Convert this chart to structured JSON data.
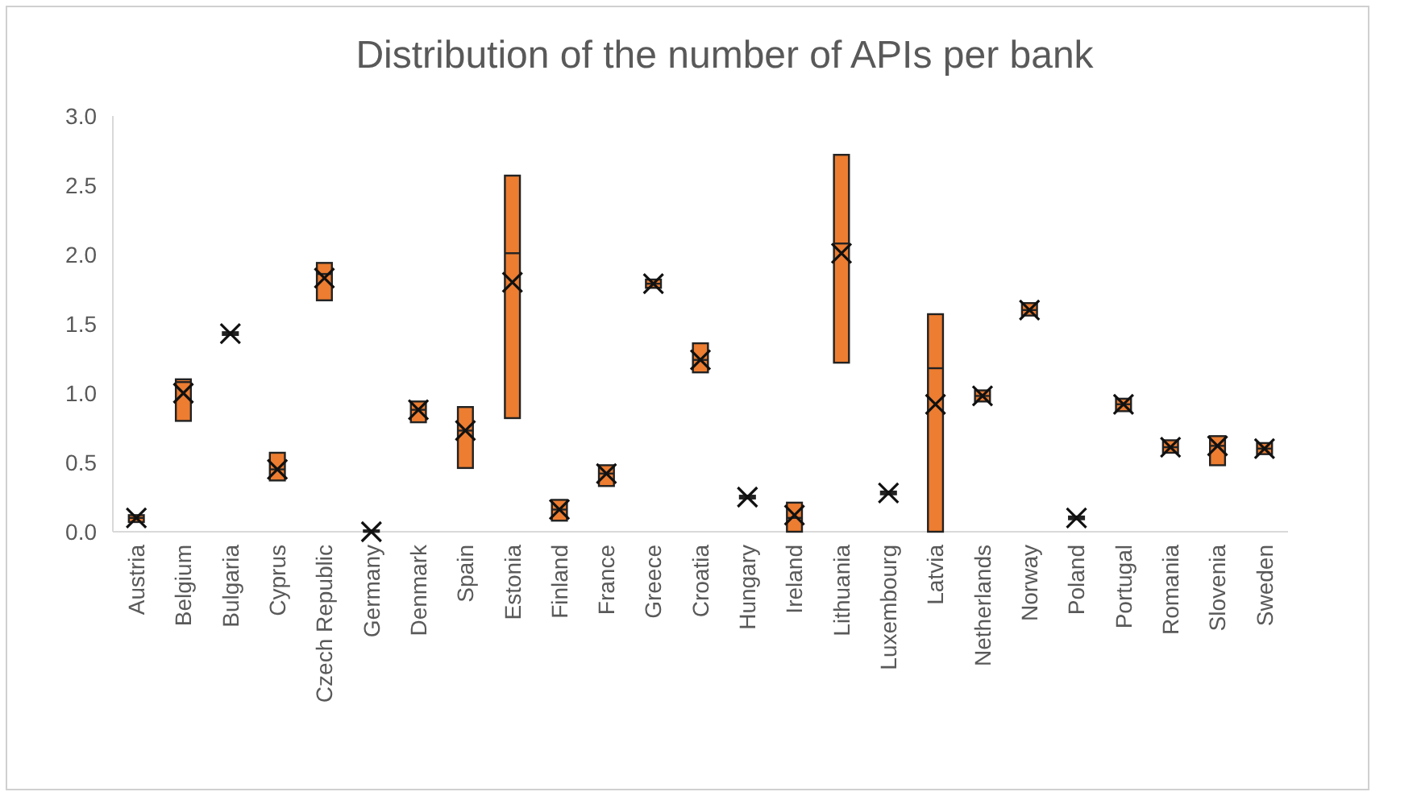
{
  "chart_data": {
    "type": "box",
    "title": "Distribution of the number of APIs per bank",
    "color": "#ed7d31",
    "ylim": [
      0,
      3
    ],
    "yticks": [
      {
        "value": 0,
        "label": "0.0"
      },
      {
        "value": 0.5,
        "label": "0.5"
      },
      {
        "value": 1,
        "label": "1.0"
      },
      {
        "value": 1.5,
        "label": "1.5"
      },
      {
        "value": 2,
        "label": "2.0"
      },
      {
        "value": 2.5,
        "label": "2.5"
      },
      {
        "value": 3,
        "label": "3.0"
      }
    ],
    "categories": [
      "Austria",
      "Belgium",
      "Bulgaria",
      "Cyprus",
      "Czech Republic",
      "Germany",
      "Denmark",
      "Spain",
      "Estonia",
      "Finland",
      "France",
      "Greece",
      "Croatia",
      "Hungary",
      "Ireland",
      "Lithuania",
      "Luxembourg",
      "Latvia",
      "Netherlands",
      "Norway",
      "Poland",
      "Portugal",
      "Romania",
      "Slovenia",
      "Sweden"
    ],
    "boxes": [
      {
        "low": 0.07,
        "q1": 0.07,
        "median": 0.1,
        "q3": 0.12,
        "high": 0.12,
        "mean": 0.1
      },
      {
        "low": 0.8,
        "q1": 0.8,
        "median": 1.08,
        "q3": 1.1,
        "high": 1.1,
        "mean": 1.0
      },
      {
        "low": 1.42,
        "q1": 1.42,
        "median": 1.43,
        "q3": 1.44,
        "high": 1.44,
        "mean": 1.43
      },
      {
        "low": 0.37,
        "q1": 0.37,
        "median": 0.45,
        "q3": 0.57,
        "high": 0.57,
        "mean": 0.45
      },
      {
        "low": 1.67,
        "q1": 1.67,
        "median": 1.86,
        "q3": 1.94,
        "high": 1.94,
        "mean": 1.83
      },
      {
        "low": 0,
        "q1": 0,
        "median": 0,
        "q3": 0.01,
        "high": 0.01,
        "mean": 0
      },
      {
        "low": 0.79,
        "q1": 0.79,
        "median": 0.88,
        "q3": 0.94,
        "high": 0.94,
        "mean": 0.88
      },
      {
        "low": 0.46,
        "q1": 0.46,
        "median": 0.73,
        "q3": 0.9,
        "high": 0.9,
        "mean": 0.73
      },
      {
        "low": 0.82,
        "q1": 0.82,
        "median": 2.01,
        "q3": 2.57,
        "high": 2.57,
        "mean": 1.8
      },
      {
        "low": 0.08,
        "q1": 0.08,
        "median": 0.16,
        "q3": 0.23,
        "high": 0.23,
        "mean": 0.16
      },
      {
        "low": 0.33,
        "q1": 0.33,
        "median": 0.42,
        "q3": 0.48,
        "high": 0.48,
        "mean": 0.42
      },
      {
        "low": 1.76,
        "q1": 1.76,
        "median": 1.79,
        "q3": 1.82,
        "high": 1.82,
        "mean": 1.79
      },
      {
        "low": 1.15,
        "q1": 1.15,
        "median": 1.24,
        "q3": 1.36,
        "high": 1.36,
        "mean": 1.24
      },
      {
        "low": 0.24,
        "q1": 0.24,
        "median": 0.25,
        "q3": 0.26,
        "high": 0.26,
        "mean": 0.25
      },
      {
        "low": 0,
        "q1": 0,
        "median": 0.1,
        "q3": 0.21,
        "high": 0.21,
        "mean": 0.12
      },
      {
        "low": 1.22,
        "q1": 1.22,
        "median": 2.08,
        "q3": 2.72,
        "high": 2.72,
        "mean": 2.01
      },
      {
        "low": 0.27,
        "q1": 0.27,
        "median": 0.28,
        "q3": 0.29,
        "high": 0.29,
        "mean": 0.28
      },
      {
        "low": 0,
        "q1": 0,
        "median": 1.18,
        "q3": 1.57,
        "high": 1.57,
        "mean": 0.92
      },
      {
        "low": 0.94,
        "q1": 0.94,
        "median": 0.98,
        "q3": 1.02,
        "high": 1.02,
        "mean": 0.98
      },
      {
        "low": 1.56,
        "q1": 1.56,
        "median": 1.6,
        "q3": 1.65,
        "high": 1.65,
        "mean": 1.6
      },
      {
        "low": 0.09,
        "q1": 0.09,
        "median": 0.1,
        "q3": 0.11,
        "high": 0.11,
        "mean": 0.1
      },
      {
        "low": 0.87,
        "q1": 0.87,
        "median": 0.92,
        "q3": 0.96,
        "high": 0.96,
        "mean": 0.92
      },
      {
        "low": 0.57,
        "q1": 0.57,
        "median": 0.61,
        "q3": 0.66,
        "high": 0.66,
        "mean": 0.61
      },
      {
        "low": 0.48,
        "q1": 0.48,
        "median": 0.62,
        "q3": 0.69,
        "high": 0.69,
        "mean": 0.62
      },
      {
        "low": 0.56,
        "q1": 0.56,
        "median": 0.6,
        "q3": 0.64,
        "high": 0.64,
        "mean": 0.6
      }
    ]
  }
}
